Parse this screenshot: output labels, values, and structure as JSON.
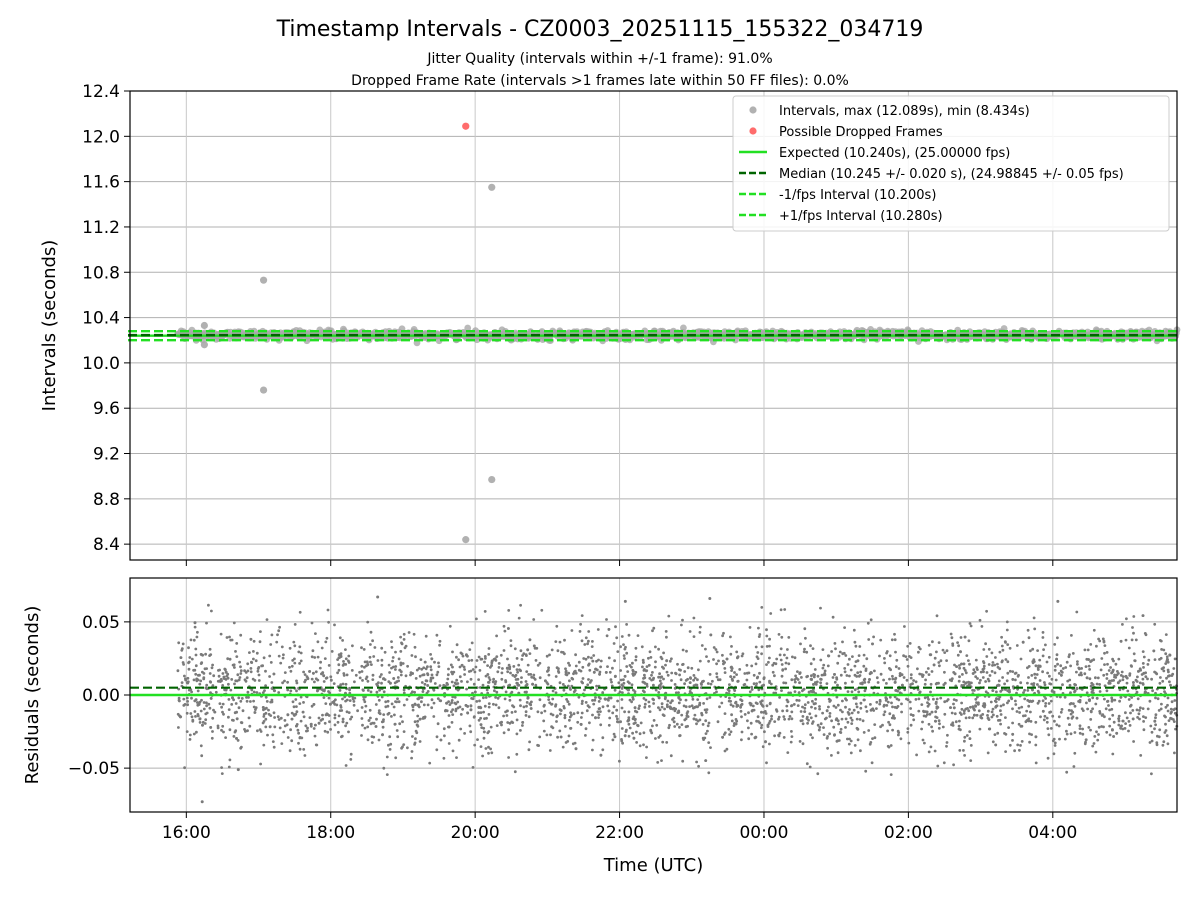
{
  "chart_data": {
    "title": "Timestamp Intervals - CZ0003_20251115_155322_034719",
    "subtitles": [
      "Jitter Quality (intervals within +/-1 frame): 91.0%",
      "Dropped Frame Rate (intervals >1 frames late within 50 FF files): 0.0%"
    ],
    "xlabel": "Time (UTC)",
    "x_ticks": [
      "16:00",
      "18:00",
      "20:00",
      "22:00",
      "00:00",
      "02:00",
      "04:00"
    ],
    "x_range_hours": [
      15.22,
      29.72
    ],
    "top_panel": {
      "type": "scatter",
      "ylabel": "Intervals (seconds)",
      "ylim": [
        8.26,
        12.4
      ],
      "y_ticks": [
        "12.4",
        "12.0",
        "11.6",
        "11.2",
        "10.8",
        "10.4",
        "10.0",
        "9.6",
        "9.2",
        "8.8",
        "8.4"
      ],
      "y_tick_values": [
        12.4,
        12.0,
        11.6,
        11.2,
        10.8,
        10.4,
        10.0,
        9.6,
        9.2,
        8.8,
        8.4
      ],
      "grid": true,
      "legend_position": "top-right",
      "legend": [
        {
          "label": "Intervals, max (12.089s), min (8.434s)",
          "kind": "marker",
          "color": "#a9a9a9"
        },
        {
          "label": "Possible Dropped Frames",
          "kind": "marker",
          "color": "#ff5c5c"
        },
        {
          "label": "Expected (10.240s), (25.00000 fps)",
          "kind": "solid",
          "color": "#22e022"
        },
        {
          "label": "Median (10.245 +/- 0.020 s), (24.98845 +/- 0.05 fps)",
          "kind": "dashed",
          "color": "#006400"
        },
        {
          "label": "-1/fps Interval (10.200s)",
          "kind": "dashed",
          "color": "#22e022"
        },
        {
          "label": "+1/fps Interval (10.280s)",
          "kind": "dashed",
          "color": "#22e022"
        }
      ],
      "expected": 10.24,
      "median": 10.245,
      "lower_interval": 10.2,
      "upper_interval": 10.28,
      "band_center": 10.245,
      "band_spread": 0.025,
      "outliers": [
        {
          "x": 16.25,
          "y": 10.33
        },
        {
          "x": 16.25,
          "y": 10.16
        },
        {
          "x": 17.07,
          "y": 10.73
        },
        {
          "x": 17.07,
          "y": 9.76
        },
        {
          "x": 20.23,
          "y": 11.55
        },
        {
          "x": 20.23,
          "y": 8.97
        },
        {
          "x": 19.87,
          "y": 8.44
        }
      ],
      "dropped_frames": [
        {
          "x": 19.87,
          "y": 12.089
        }
      ]
    },
    "bottom_panel": {
      "type": "scatter",
      "ylabel": "Residuals (seconds)",
      "ylim": [
        -0.08,
        0.08
      ],
      "y_ticks": [
        "0.05",
        "0.00",
        "−0.05"
      ],
      "y_tick_values": [
        0.05,
        0.0,
        -0.05
      ],
      "grid": true,
      "zero_line_color": "#22e022",
      "median_offset": 0.005,
      "median_color": "#006400",
      "residual_std": 0.02,
      "sample_x_range_hours": [
        15.88,
        29.72
      ],
      "n_points": 3700,
      "point_color": "#7a7a7a",
      "notable_points": [
        {
          "x": 16.22,
          "y": -0.073
        },
        {
          "x": 16.72,
          "y": -0.051
        },
        {
          "x": 18.65,
          "y": 0.067
        },
        {
          "x": 22.08,
          "y": 0.064
        },
        {
          "x": 23.25,
          "y": 0.066
        },
        {
          "x": 28.07,
          "y": 0.064
        }
      ]
    }
  }
}
